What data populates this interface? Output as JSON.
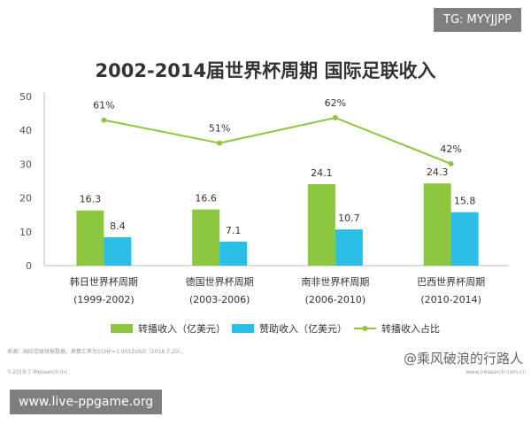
{
  "header_badge": "TG: MYYJJPP",
  "footer_badge": "www.live-ppgame.org",
  "watermark": "@乘风破浪的行路人",
  "source_note": "来源：国际足联财报数据，换算汇率为1CHF=1.0012USD（2018.7.20）。",
  "copyright": "©2018.7 iResearch Inc.",
  "site": "www.iresearch.com.cn",
  "colors": {
    "broadcast": "#8dc63f",
    "sponsor": "#2bbfe8",
    "share_line": "#8dc63f"
  },
  "chart_data": {
    "type": "bar",
    "title": "2002-2014届世界杯周期 国际足联收入",
    "xlabel": "",
    "ylabel": "",
    "ylim": [
      0,
      50
    ],
    "yticks": [
      0,
      10,
      20,
      30,
      40,
      50
    ],
    "grid": false,
    "legend_position": "bottom",
    "categories": [
      [
        "韩日世界杯周期",
        "(1999-2002)"
      ],
      [
        "德国世界杯周期",
        "(2003-2006)"
      ],
      [
        "南非世界杯周期",
        "(2006-2010)"
      ],
      [
        "巴西世界杯周期",
        "(2010-2014)"
      ]
    ],
    "series": [
      {
        "name": "转播收入（亿美元）",
        "type": "bar",
        "values": [
          16.3,
          16.6,
          24.1,
          24.3
        ],
        "labels": [
          "16.3",
          "16.6",
          "24.1",
          "24.3"
        ]
      },
      {
        "name": "赞助收入（亿美元）",
        "type": "bar",
        "values": [
          8.4,
          7.1,
          10.7,
          15.8
        ],
        "labels": [
          "8.4",
          "7.1",
          "10.7",
          "15.8"
        ]
      },
      {
        "name": "转播收入占比",
        "type": "line",
        "values": [
          61,
          51,
          62,
          42
        ],
        "labels": [
          "61%",
          "51%",
          "62%",
          "42%"
        ]
      }
    ]
  }
}
